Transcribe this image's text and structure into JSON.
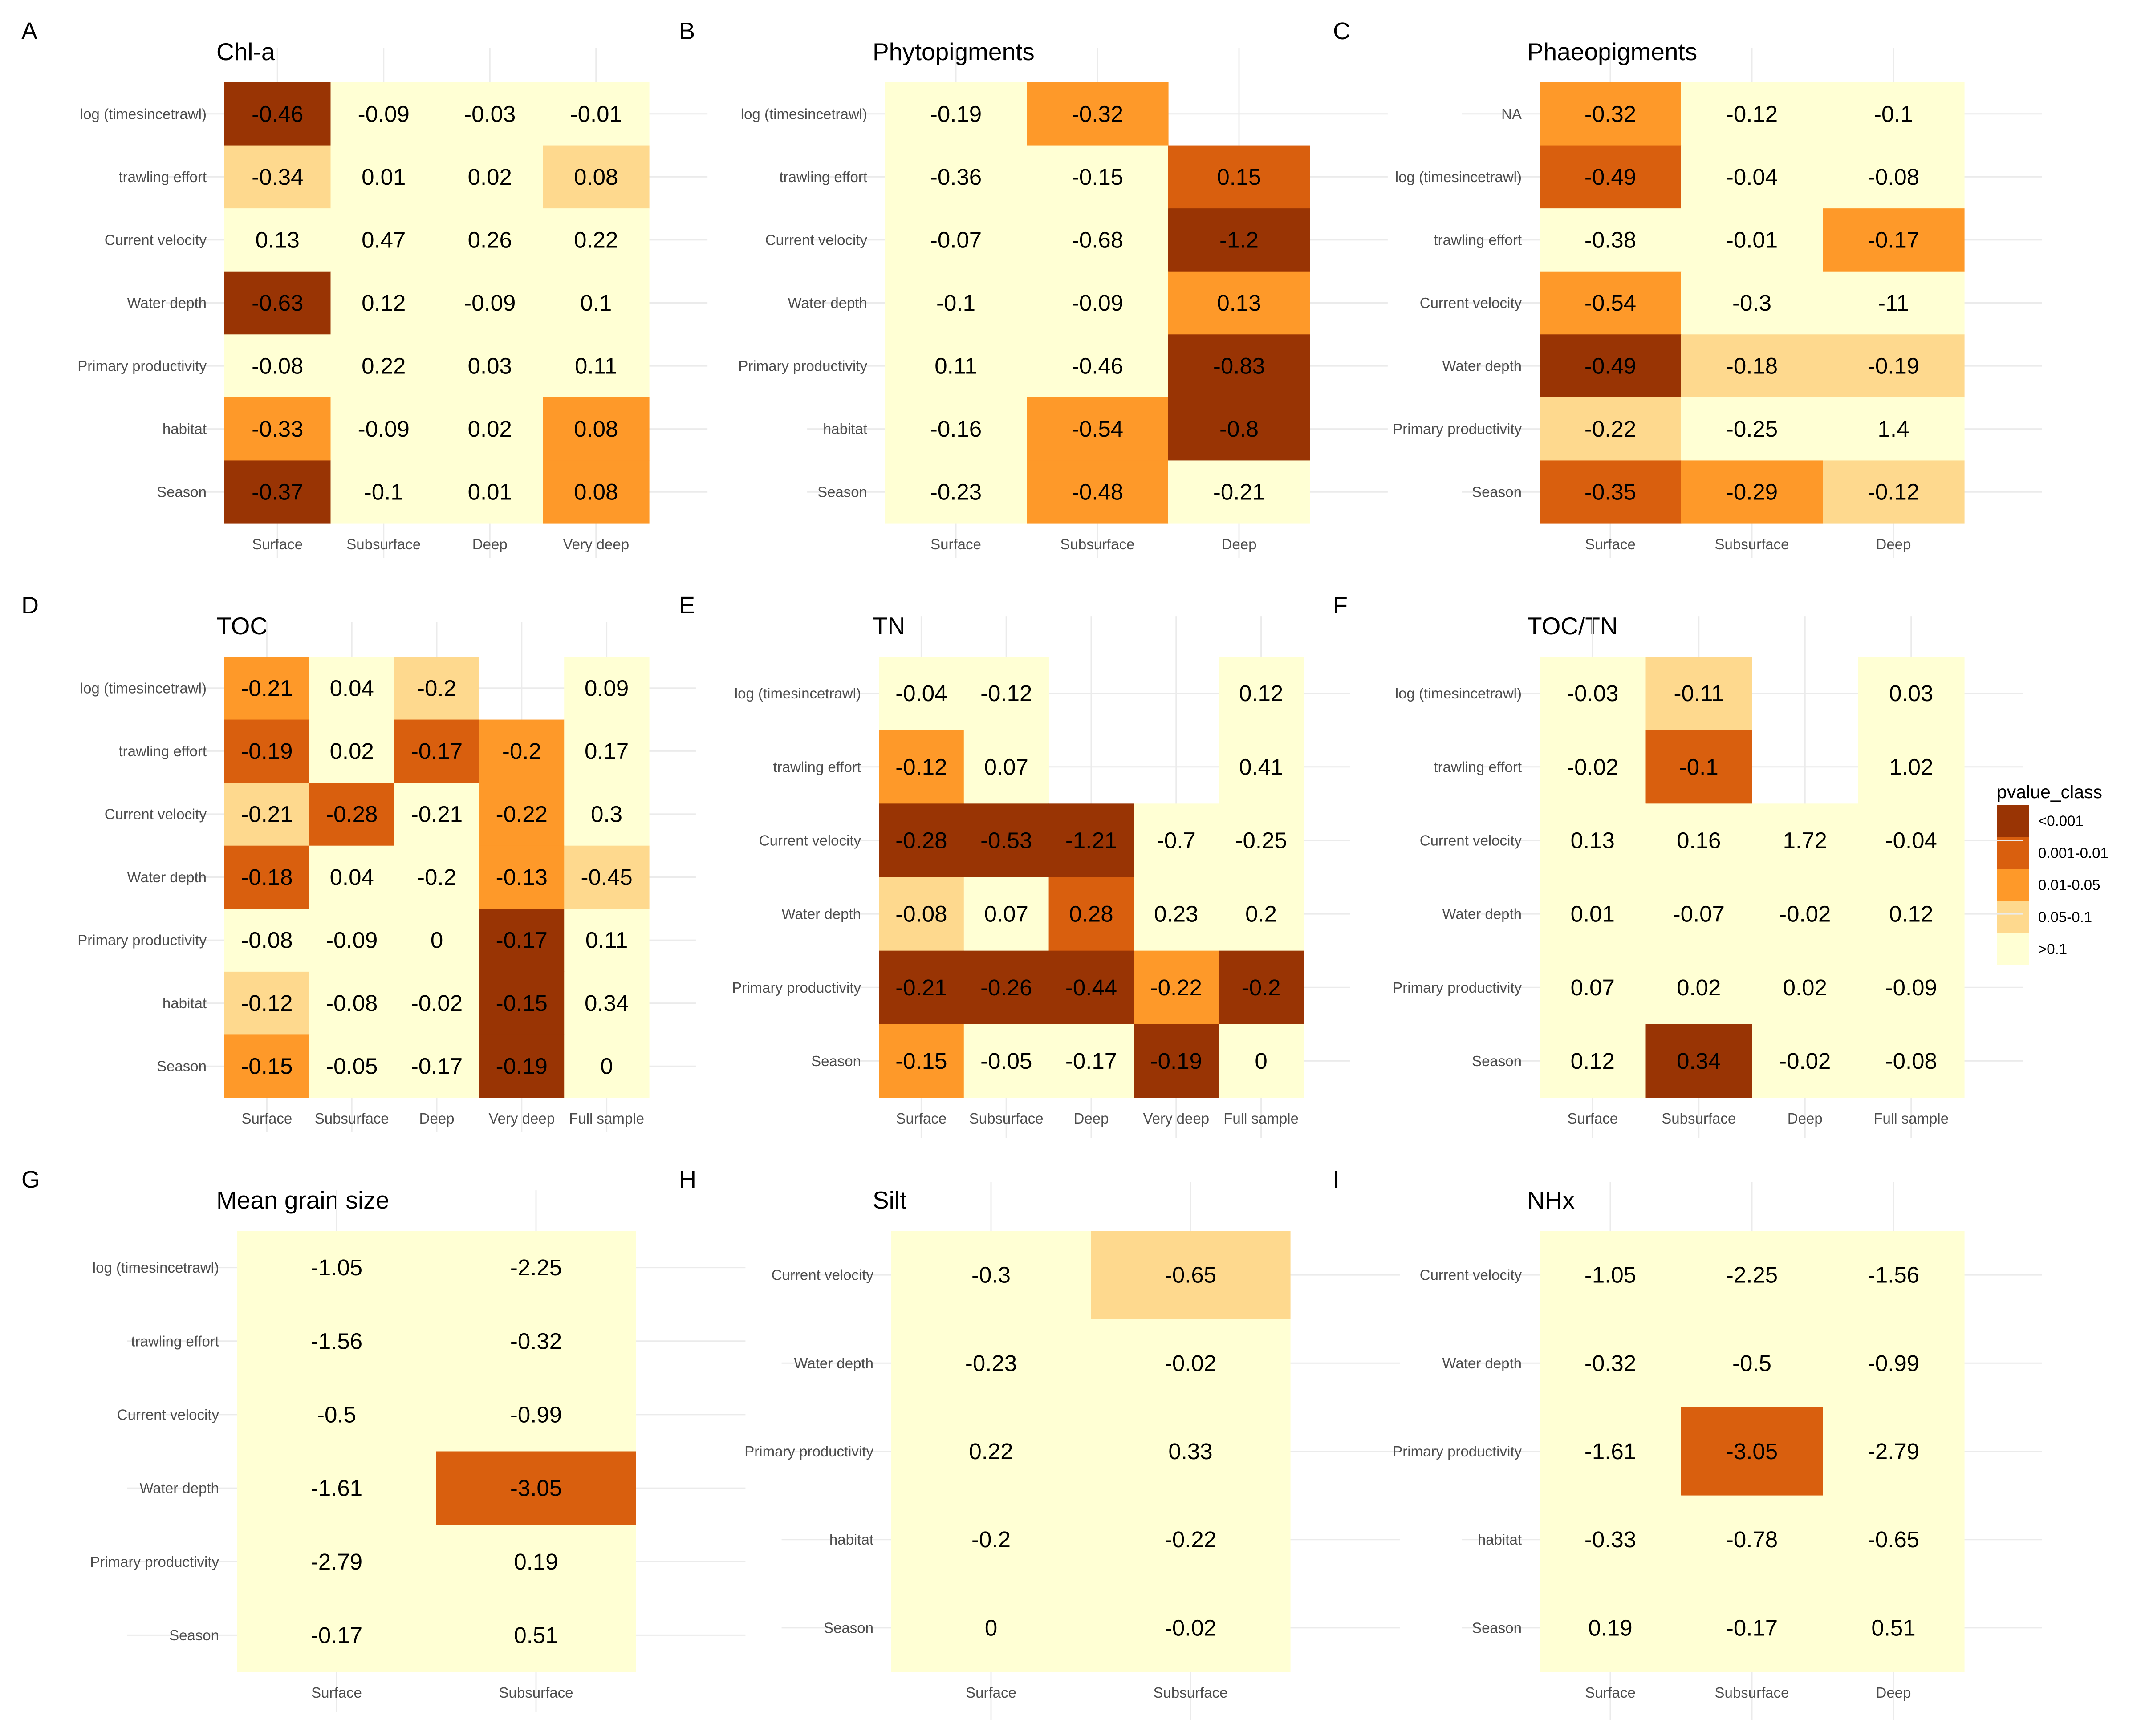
{
  "legend": {
    "title": "pvalue_class",
    "classes": [
      {
        "label": "<0.001",
        "color": "#993404"
      },
      {
        "label": "0.001-0.01",
        "color": "#d95f0e"
      },
      {
        "label": "0.01-0.05",
        "color": "#fe9929"
      },
      {
        "label": "0.05-0.1",
        "color": "#fed98e"
      },
      {
        "label": ">0.1",
        "color": "#ffffd4"
      }
    ]
  },
  "chart_data": [
    {
      "type": "heatmap",
      "letter": "A",
      "title": "Chl-a",
      "x": [
        "Surface",
        "Subsurface",
        "Deep",
        "Very deep"
      ],
      "y": [
        "log (timesincetrawl)",
        "trawling effort",
        "Current velocity",
        "Water depth",
        "Primary productivity",
        "habitat",
        "Season"
      ],
      "cells": [
        [
          [
            -0.46,
            0
          ],
          [
            -0.09,
            4
          ],
          [
            -0.03,
            4
          ],
          [
            -0.01,
            4
          ]
        ],
        [
          [
            -0.34,
            3
          ],
          [
            0.01,
            4
          ],
          [
            0.02,
            4
          ],
          [
            0.08,
            3
          ]
        ],
        [
          [
            0.13,
            4
          ],
          [
            0.47,
            4
          ],
          [
            0.26,
            4
          ],
          [
            0.22,
            4
          ]
        ],
        [
          [
            -0.63,
            0
          ],
          [
            0.12,
            4
          ],
          [
            -0.09,
            4
          ],
          [
            0.1,
            4
          ]
        ],
        [
          [
            -0.08,
            4
          ],
          [
            0.22,
            4
          ],
          [
            0.03,
            4
          ],
          [
            0.11,
            4
          ]
        ],
        [
          [
            -0.33,
            2
          ],
          [
            -0.09,
            4
          ],
          [
            0.02,
            4
          ],
          [
            0.08,
            2
          ]
        ],
        [
          [
            -0.37,
            0
          ],
          [
            -0.1,
            4
          ],
          [
            0.01,
            4
          ],
          [
            0.08,
            2
          ]
        ]
      ]
    },
    {
      "type": "heatmap",
      "letter": "B",
      "title": "Phytopigments",
      "x": [
        "Surface",
        "Subsurface",
        "Deep"
      ],
      "y": [
        "log (timesincetrawl)",
        "trawling effort",
        "Current velocity",
        "Water depth",
        "Primary productivity",
        "habitat",
        "Season"
      ],
      "cells": [
        [
          [
            -0.19,
            4
          ],
          [
            -0.32,
            2
          ],
          null
        ],
        [
          [
            -0.36,
            4
          ],
          [
            -0.15,
            4
          ],
          [
            0.15,
            1
          ]
        ],
        [
          [
            -0.07,
            4
          ],
          [
            -0.68,
            4
          ],
          [
            -1.2,
            0
          ]
        ],
        [
          [
            -0.1,
            4
          ],
          [
            -0.09,
            4
          ],
          [
            0.13,
            2
          ]
        ],
        [
          [
            0.11,
            4
          ],
          [
            -0.46,
            4
          ],
          [
            -0.83,
            0
          ]
        ],
        [
          [
            -0.16,
            4
          ],
          [
            -0.54,
            2
          ],
          [
            -0.8,
            0
          ]
        ],
        [
          [
            -0.23,
            4
          ],
          [
            -0.48,
            2
          ],
          [
            -0.21,
            4
          ]
        ]
      ]
    },
    {
      "type": "heatmap",
      "letter": "C",
      "title": "Phaeopigments",
      "x": [
        "Surface",
        "Subsurface",
        "Deep"
      ],
      "y": [
        "NA",
        "log (timesincetrawl)",
        "trawling effort",
        "Current velocity",
        "Water depth",
        "Primary productivity",
        "Season"
      ],
      "cells": [
        [
          [
            -0.32,
            2
          ],
          [
            -0.12,
            4
          ],
          [
            -0.1,
            4
          ]
        ],
        [
          [
            -0.49,
            1
          ],
          [
            -0.04,
            4
          ],
          [
            -0.08,
            4
          ]
        ],
        [
          [
            -0.38,
            4
          ],
          [
            -0.01,
            4
          ],
          [
            -0.17,
            2
          ]
        ],
        [
          [
            -0.54,
            2
          ],
          [
            -0.3,
            4
          ],
          [
            -11,
            4
          ]
        ],
        [
          [
            -0.49,
            0
          ],
          [
            -0.18,
            3
          ],
          [
            -0.19,
            3
          ]
        ],
        [
          [
            -0.22,
            3
          ],
          [
            -0.25,
            4
          ],
          [
            1.4,
            4
          ]
        ],
        [
          [
            -0.35,
            1
          ],
          [
            -0.29,
            2
          ],
          [
            -0.12,
            3
          ]
        ]
      ]
    },
    {
      "type": "heatmap",
      "letter": "D",
      "title": "TOC",
      "x": [
        "Surface",
        "Subsurface",
        "Deep",
        "Very deep",
        "Full sample"
      ],
      "y": [
        "log (timesincetrawl)",
        "trawling effort",
        "Current velocity",
        "Water depth",
        "Primary productivity",
        "habitat",
        "Season"
      ],
      "cells": [
        [
          [
            -0.21,
            2
          ],
          [
            0.04,
            4
          ],
          [
            -0.2,
            3
          ],
          null,
          [
            0.09,
            4
          ]
        ],
        [
          [
            -0.19,
            1
          ],
          [
            0.02,
            4
          ],
          [
            -0.17,
            1
          ],
          [
            -0.2,
            2
          ],
          [
            0.17,
            4
          ]
        ],
        [
          [
            -0.21,
            3
          ],
          [
            -0.28,
            1
          ],
          [
            -0.21,
            4
          ],
          [
            -0.22,
            2
          ],
          [
            0.3,
            4
          ]
        ],
        [
          [
            -0.18,
            1
          ],
          [
            0.04,
            4
          ],
          [
            -0.2,
            4
          ],
          [
            -0.13,
            2
          ],
          [
            -0.45,
            3
          ]
        ],
        [
          [
            -0.08,
            4
          ],
          [
            -0.09,
            4
          ],
          [
            0,
            4
          ],
          [
            -0.17,
            0
          ],
          [
            0.11,
            4
          ]
        ],
        [
          [
            -0.12,
            3
          ],
          [
            -0.08,
            4
          ],
          [
            -0.02,
            4
          ],
          [
            -0.15,
            0
          ],
          [
            0.34,
            4
          ]
        ],
        [
          [
            -0.15,
            2
          ],
          [
            -0.05,
            4
          ],
          [
            -0.17,
            4
          ],
          [
            -0.19,
            0
          ],
          [
            0,
            4
          ]
        ]
      ]
    },
    {
      "type": "heatmap",
      "letter": "E",
      "title": "TN",
      "x": [
        "Surface",
        "Subsurface",
        "Deep",
        "Very deep",
        "Full sample"
      ],
      "y": [
        "log (timesincetrawl)",
        "trawling effort",
        "Current velocity",
        "Water depth",
        "Primary productivity",
        "Season"
      ],
      "cells": [
        [
          [
            -0.04,
            4
          ],
          [
            -0.12,
            4
          ],
          null,
          null,
          [
            0.12,
            4
          ]
        ],
        [
          [
            -0.12,
            2
          ],
          [
            0.07,
            4
          ],
          null,
          null,
          [
            0.41,
            4
          ]
        ],
        [
          [
            -0.28,
            0
          ],
          [
            -0.53,
            0
          ],
          [
            -1.21,
            0
          ],
          [
            -0.7,
            4
          ],
          [
            -0.25,
            4
          ]
        ],
        [
          [
            -0.08,
            3
          ],
          [
            0.07,
            4
          ],
          [
            0.28,
            1
          ],
          [
            0.23,
            4
          ],
          [
            0.2,
            4
          ]
        ],
        [
          [
            -0.21,
            0
          ],
          [
            -0.26,
            0
          ],
          [
            -0.44,
            0
          ],
          [
            -0.22,
            2
          ],
          [
            -0.2,
            0
          ]
        ],
        [
          [
            -0.15,
            2
          ],
          [
            -0.05,
            4
          ],
          [
            -0.17,
            4
          ],
          [
            -0.19,
            0
          ],
          [
            0,
            4
          ]
        ]
      ]
    },
    {
      "type": "heatmap",
      "letter": "F",
      "title": "TOC/TN",
      "x": [
        "Surface",
        "Subsurface",
        "Deep",
        "Full sample"
      ],
      "y": [
        "log (timesincetrawl)",
        "trawling effort",
        "Current velocity",
        "Water depth",
        "Primary productivity",
        "Season"
      ],
      "cells": [
        [
          [
            -0.03,
            4
          ],
          [
            -0.11,
            3
          ],
          null,
          [
            0.03,
            4
          ]
        ],
        [
          [
            -0.02,
            4
          ],
          [
            -0.1,
            1
          ],
          null,
          [
            1.02,
            4
          ]
        ],
        [
          [
            0.13,
            4
          ],
          [
            0.16,
            4
          ],
          [
            1.72,
            4
          ],
          [
            -0.04,
            4
          ]
        ],
        [
          [
            0.01,
            4
          ],
          [
            -0.07,
            4
          ],
          [
            -0.02,
            4
          ],
          [
            0.12,
            4
          ]
        ],
        [
          [
            0.07,
            4
          ],
          [
            0.02,
            4
          ],
          [
            0.02,
            4
          ],
          [
            -0.09,
            4
          ]
        ],
        [
          [
            0.12,
            4
          ],
          [
            0.34,
            0
          ],
          [
            -0.02,
            4
          ],
          [
            -0.08,
            4
          ]
        ]
      ]
    },
    {
      "type": "heatmap",
      "letter": "G",
      "title": "Mean grain size",
      "x": [
        "Surface",
        "Subsurface"
      ],
      "y": [
        "log (timesincetrawl)",
        "trawling effort",
        "Current velocity",
        "Water depth",
        "Primary productivity",
        "Season"
      ],
      "cells": [
        [
          [
            -1.05,
            4
          ],
          [
            -2.25,
            4
          ]
        ],
        [
          [
            -1.56,
            4
          ],
          [
            -0.32,
            4
          ]
        ],
        [
          [
            -0.5,
            4
          ],
          [
            -0.99,
            4
          ]
        ],
        [
          [
            -1.61,
            4
          ],
          [
            -3.05,
            1
          ]
        ],
        [
          [
            -2.79,
            4
          ],
          [
            0.19,
            4
          ]
        ],
        [
          [
            -0.17,
            4
          ],
          [
            0.51,
            4
          ]
        ]
      ]
    },
    {
      "type": "heatmap",
      "letter": "H",
      "title": "Silt",
      "x": [
        "Surface",
        "Subsurface"
      ],
      "y": [
        "Current velocity",
        "Water depth",
        "Primary productivity",
        "habitat",
        "Season"
      ],
      "cells": [
        [
          [
            -0.3,
            4
          ],
          [
            -0.65,
            3
          ]
        ],
        [
          [
            -0.23,
            4
          ],
          [
            -0.02,
            4
          ]
        ],
        [
          [
            0.22,
            4
          ],
          [
            0.33,
            4
          ]
        ],
        [
          [
            -0.2,
            4
          ],
          [
            -0.22,
            4
          ]
        ],
        [
          [
            0,
            4
          ],
          [
            -0.02,
            4
          ]
        ]
      ]
    },
    {
      "type": "heatmap",
      "letter": "I",
      "title": "NHx",
      "x": [
        "Surface",
        "Subsurface",
        "Deep"
      ],
      "y": [
        "Current velocity",
        "Water depth",
        "Primary productivity",
        "habitat",
        "Season"
      ],
      "cells": [
        [
          [
            -1.05,
            4
          ],
          [
            -2.25,
            4
          ],
          [
            -1.56,
            4
          ]
        ],
        [
          [
            -0.32,
            4
          ],
          [
            -0.5,
            4
          ],
          [
            -0.99,
            4
          ]
        ],
        [
          [
            -1.61,
            4
          ],
          [
            -3.05,
            1
          ],
          [
            -2.79,
            4
          ]
        ],
        [
          [
            -0.33,
            4
          ],
          [
            -0.78,
            4
          ],
          [
            -0.65,
            4
          ]
        ],
        [
          [
            0.19,
            4
          ],
          [
            -0.17,
            4
          ],
          [
            0.51,
            4
          ]
        ]
      ]
    }
  ]
}
